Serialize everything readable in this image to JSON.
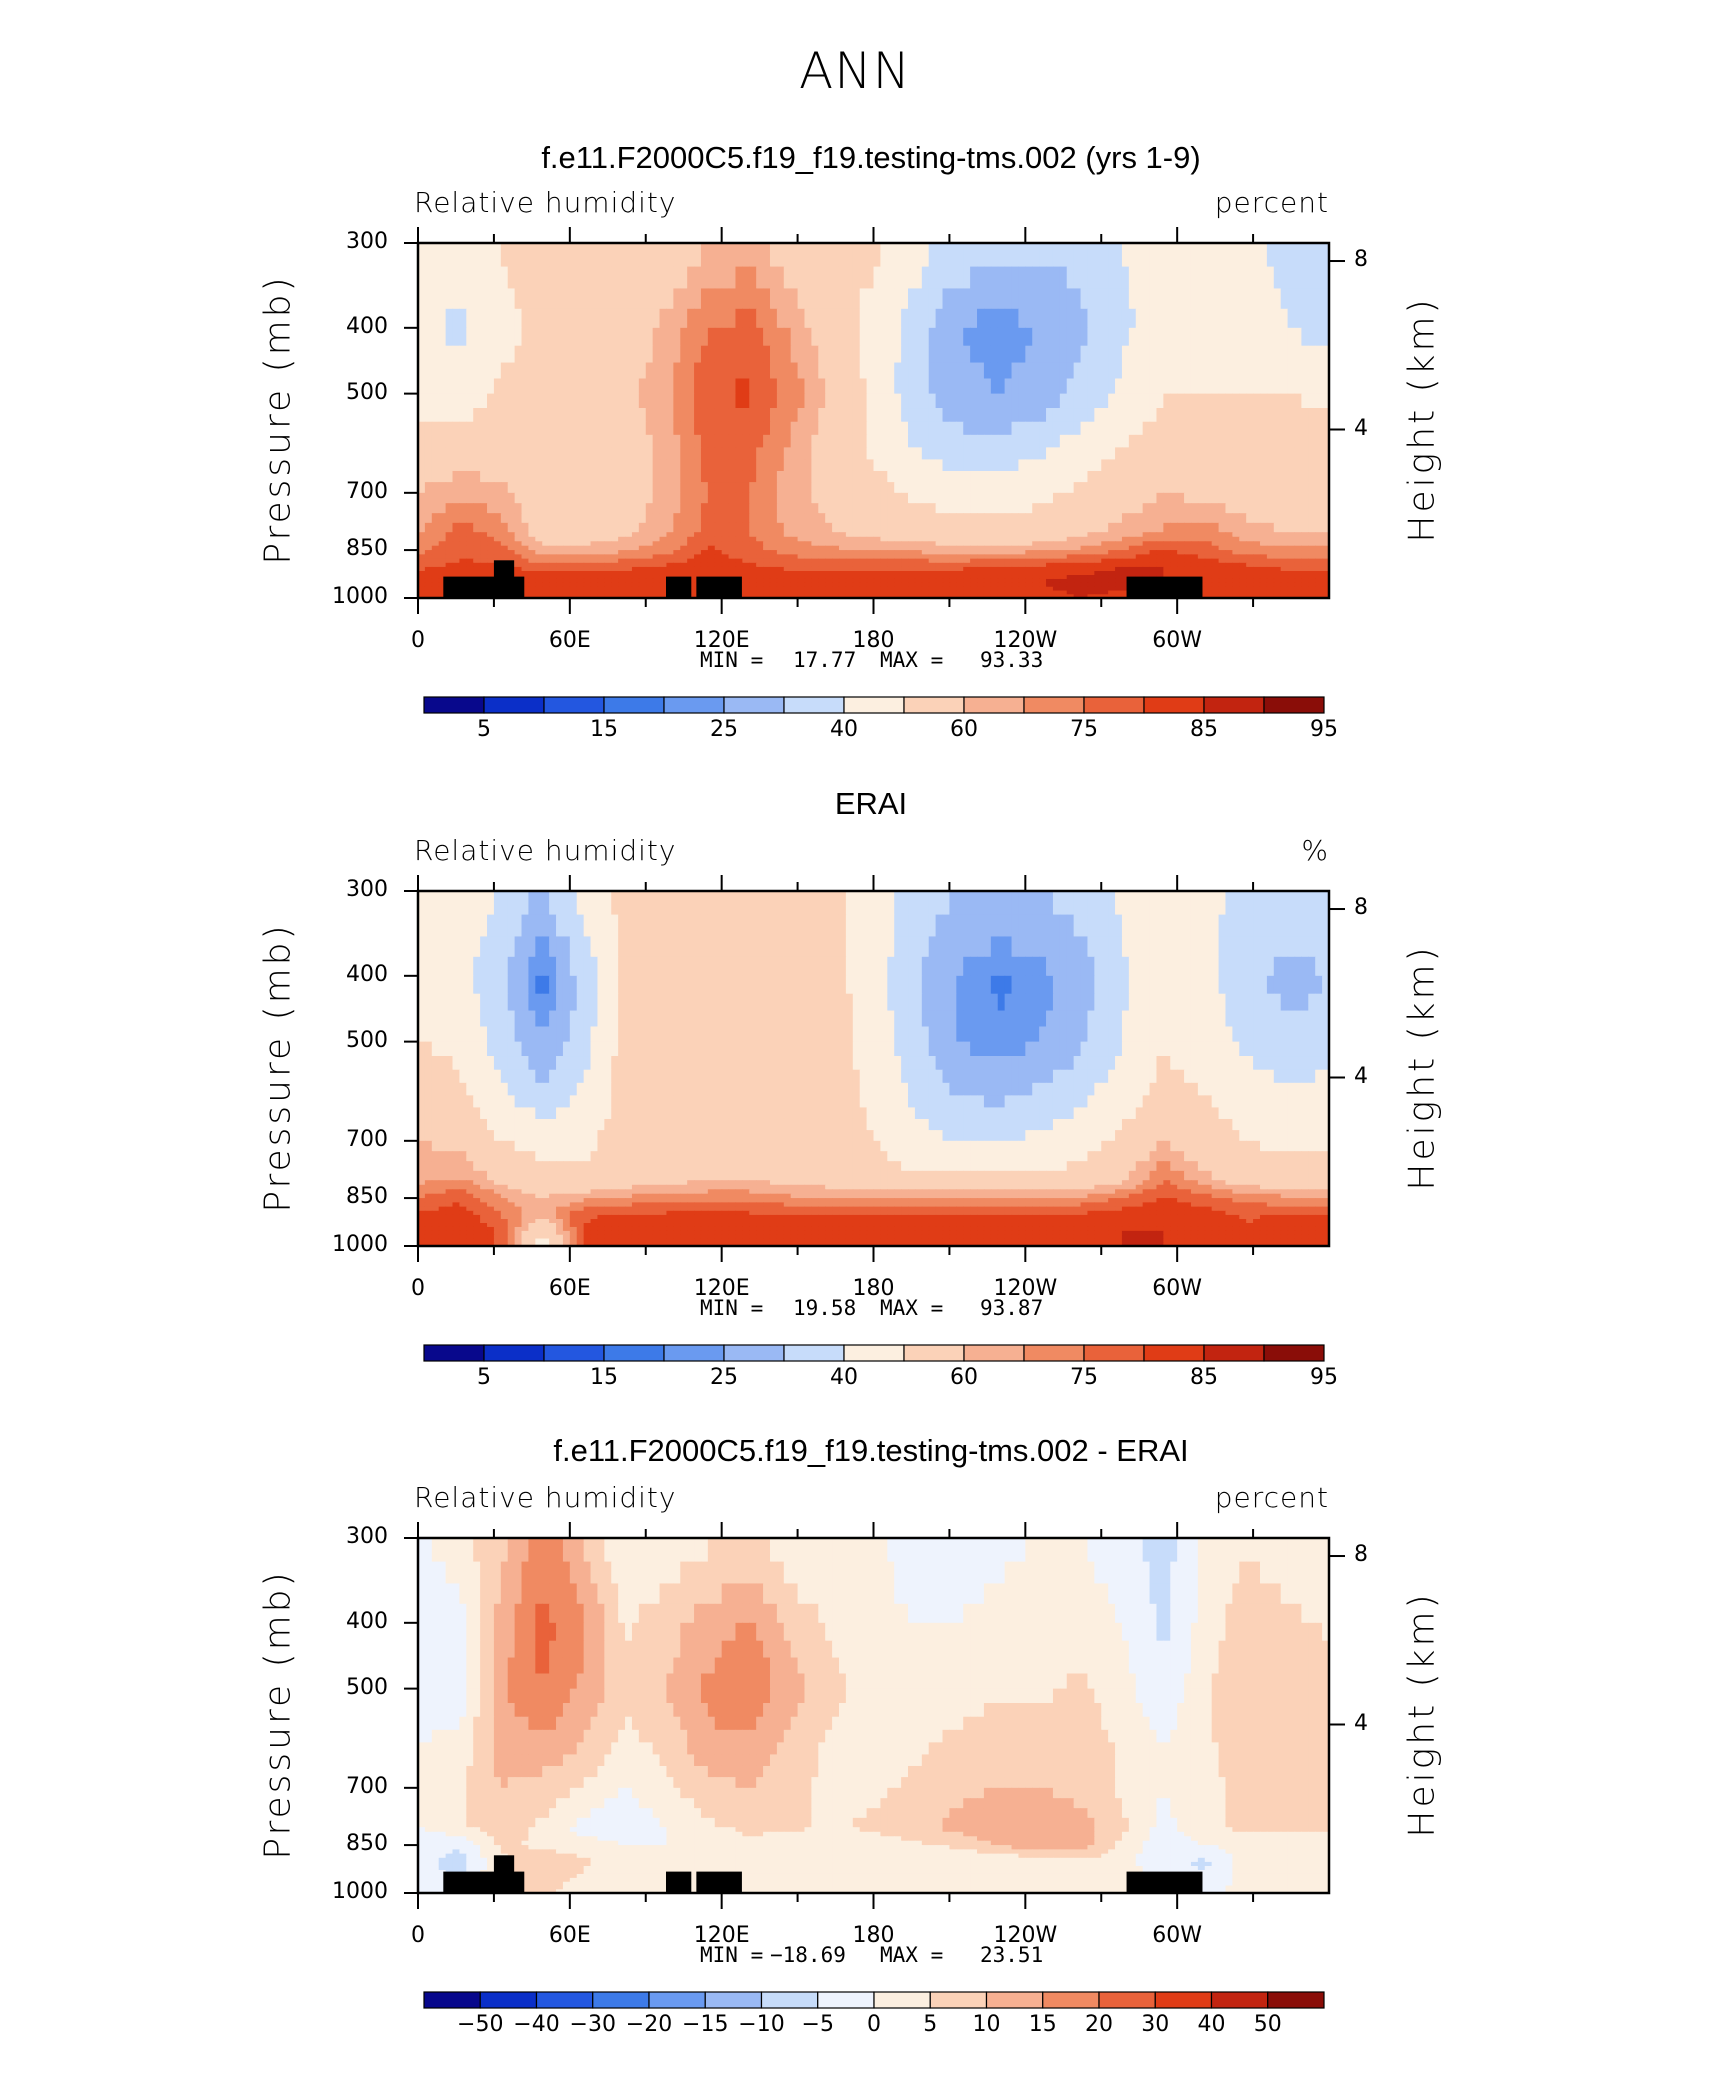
{
  "main_title": "ANN",
  "colors": {
    "rh_levels": [
      "#08088c",
      "#0b2fc8",
      "#2357e0",
      "#3d7ae8",
      "#6a9af0",
      "#9ab9f4",
      "#c7dcfa",
      "#fcefe0",
      "#fbd2b8",
      "#f6b092",
      "#f08a62",
      "#e9623a",
      "#e03c16",
      "#c22410",
      "#8a0d08"
    ],
    "diff_levels": [
      "#08088c",
      "#0b2fc8",
      "#2357e0",
      "#3d7ae8",
      "#6a9af0",
      "#9ab9f4",
      "#c7dcfa",
      "#eef3fd",
      "#fcefe0",
      "#fbd2b8",
      "#f6b092",
      "#f08a62",
      "#e9623a",
      "#e03c16",
      "#c22410",
      "#8a0d08"
    ],
    "topography": "#000000"
  },
  "chart_data": [
    {
      "type": "heatmap",
      "id": "model",
      "title": "f.e11.F2000C5.f19_f19.testing-tms.002 (yrs 1-9)",
      "variable_label": "Relative humidity",
      "units_label": "percent",
      "ylabel": "Pressure (mb)",
      "y2label": "Height (km)",
      "y_ticks": [
        "300",
        "400",
        "500",
        "700",
        "850",
        "1000"
      ],
      "y2_ticks": [
        "8",
        "4"
      ],
      "x_ticks": [
        "0",
        "60E",
        "120E",
        "180",
        "120W",
        "60W"
      ],
      "min_label": "MIN =",
      "min_value": "17.77",
      "max_label": "MAX =",
      "max_value": "93.33",
      "colorbar_labels": [
        "5",
        "15",
        "25",
        "40",
        "60",
        "75",
        "85",
        "95"
      ],
      "field": [
        [
          52,
          56,
          60,
          64,
          64,
          60,
          62,
          70,
          72,
          66,
          62,
          62,
          54,
          48,
          44,
          42,
          44,
          50,
          56,
          54,
          52,
          48,
          50
        ],
        [
          52,
          48,
          58,
          62,
          66,
          64,
          72,
          80,
          82,
          74,
          66,
          56,
          46,
          30,
          26,
          30,
          38,
          48,
          54,
          52,
          54,
          50,
          46
        ],
        [
          56,
          54,
          62,
          60,
          64,
          68,
          74,
          84,
          86,
          78,
          68,
          58,
          44,
          34,
          30,
          34,
          44,
          52,
          60,
          60,
          60,
          60,
          58
        ],
        [
          64,
          64,
          66,
          60,
          62,
          66,
          72,
          82,
          82,
          74,
          66,
          58,
          50,
          44,
          44,
          48,
          54,
          60,
          64,
          64,
          64,
          64,
          64
        ],
        [
          70,
          74,
          72,
          64,
          64,
          66,
          72,
          80,
          80,
          72,
          68,
          64,
          58,
          56,
          56,
          58,
          62,
          66,
          70,
          68,
          66,
          66,
          66
        ],
        [
          74,
          82,
          78,
          66,
          66,
          68,
          74,
          82,
          80,
          74,
          70,
          68,
          66,
          64,
          64,
          64,
          68,
          72,
          76,
          78,
          72,
          70,
          70
        ],
        [
          78,
          84,
          82,
          72,
          72,
          74,
          78,
          86,
          82,
          78,
          76,
          74,
          74,
          72,
          72,
          74,
          76,
          80,
          86,
          82,
          78,
          76,
          76
        ],
        [
          84,
          86,
          86,
          82,
          82,
          84,
          86,
          88,
          86,
          84,
          84,
          84,
          84,
          84,
          86,
          86,
          88,
          90,
          90,
          88,
          86,
          84,
          84
        ],
        [
          88,
          90,
          90,
          90,
          90,
          90,
          90,
          90,
          90,
          90,
          90,
          90,
          90,
          90,
          90,
          90,
          92,
          92,
          90,
          88,
          88,
          90,
          90
        ],
        [
          86,
          88,
          88,
          88,
          88,
          88,
          88,
          88,
          88,
          88,
          88,
          88,
          88,
          88,
          88,
          88,
          90,
          88,
          88,
          86,
          86,
          88,
          88
        ]
      ],
      "topography": [
        {
          "lon_start": 10,
          "lon_end": 42,
          "top_mb": 930
        },
        {
          "lon_start": 30,
          "lon_end": 38,
          "top_mb": 880
        },
        {
          "lon_start": 98,
          "lon_end": 108,
          "top_mb": 930
        },
        {
          "lon_start": 110,
          "lon_end": 128,
          "top_mb": 930
        },
        {
          "lon_start": 280,
          "lon_end": 310,
          "top_mb": 930
        }
      ]
    },
    {
      "type": "heatmap",
      "id": "obs",
      "title": "ERAI",
      "variable_label": "Relative humidity",
      "units_label": "%",
      "ylabel": "Pressure (mb)",
      "y2label": "Height (km)",
      "y_ticks": [
        "300",
        "400",
        "500",
        "700",
        "850",
        "1000"
      ],
      "y2_ticks": [
        "8",
        "4"
      ],
      "x_ticks": [
        "0",
        "60E",
        "120E",
        "180",
        "120W",
        "60W"
      ],
      "min_label": "MIN =",
      "min_value": "19.58",
      "max_label": "MAX =",
      "max_value": "93.87",
      "colorbar_labels": [
        "5",
        "15",
        "25",
        "40",
        "60",
        "75",
        "85",
        "95"
      ],
      "field": [
        [
          56,
          54,
          50,
          38,
          56,
          62,
          62,
          66,
          64,
          64,
          62,
          56,
          46,
          40,
          38,
          40,
          44,
          52,
          58,
          54,
          46,
          46,
          50
        ],
        [
          58,
          52,
          44,
          22,
          44,
          62,
          64,
          66,
          62,
          66,
          64,
          54,
          42,
          30,
          24,
          26,
          36,
          48,
          58,
          52,
          44,
          36,
          40
        ],
        [
          60,
          58,
          46,
          30,
          46,
          64,
          66,
          66,
          64,
          66,
          64,
          56,
          44,
          30,
          26,
          30,
          38,
          50,
          60,
          56,
          48,
          42,
          46
        ],
        [
          64,
          62,
          52,
          44,
          52,
          64,
          66,
          66,
          66,
          66,
          64,
          58,
          48,
          40,
          38,
          42,
          48,
          56,
          62,
          60,
          56,
          52,
          54
        ],
        [
          70,
          68,
          60,
          56,
          58,
          64,
          66,
          68,
          68,
          66,
          64,
          60,
          54,
          50,
          50,
          52,
          56,
          62,
          70,
          64,
          60,
          58,
          58
        ],
        [
          74,
          76,
          68,
          64,
          62,
          66,
          68,
          70,
          70,
          68,
          66,
          64,
          62,
          62,
          62,
          62,
          64,
          68,
          80,
          72,
          66,
          64,
          64
        ],
        [
          80,
          84,
          76,
          70,
          74,
          76,
          78,
          78,
          78,
          76,
          76,
          76,
          76,
          76,
          76,
          76,
          76,
          80,
          86,
          82,
          78,
          76,
          76
        ],
        [
          86,
          88,
          80,
          72,
          84,
          86,
          86,
          86,
          86,
          86,
          86,
          86,
          86,
          86,
          86,
          86,
          86,
          88,
          88,
          88,
          84,
          86,
          86
        ],
        [
          88,
          90,
          84,
          60,
          86,
          88,
          88,
          88,
          88,
          88,
          88,
          88,
          88,
          88,
          88,
          88,
          88,
          90,
          90,
          88,
          86,
          88,
          88
        ],
        [
          88,
          90,
          84,
          56,
          86,
          88,
          88,
          88,
          88,
          88,
          88,
          88,
          88,
          88,
          88,
          88,
          88,
          90,
          90,
          88,
          86,
          88,
          88
        ]
      ],
      "topography": []
    },
    {
      "type": "heatmap",
      "id": "diff",
      "title": "f.e11.F2000C5.f19_f19.testing-tms.002 - ERAI",
      "variable_label": "Relative humidity",
      "units_label": "percent",
      "ylabel": "Pressure (mb)",
      "y2label": "Height (km)",
      "y_ticks": [
        "300",
        "400",
        "500",
        "700",
        "850",
        "1000"
      ],
      "y2_ticks": [
        "8",
        "4"
      ],
      "x_ticks": [
        "0",
        "60E",
        "120E",
        "180",
        "120W",
        "60W"
      ],
      "min_label": "MIN =",
      "min_value": "−18.69",
      "max_label": "MAX =",
      "max_value": "23.51",
      "colorbar_labels": [
        "−50",
        "−40",
        "−30",
        "−20",
        "−15",
        "−10",
        "−5",
        "0",
        "5",
        "10",
        "15",
        "20",
        "30",
        "40",
        "50"
      ],
      "field": [
        [
          -2,
          4,
          8,
          18,
          10,
          0,
          2,
          4,
          6,
          2,
          0,
          2,
          -4,
          -4,
          -2,
          0,
          0,
          -2,
          -8,
          2,
          4,
          2,
          0
        ],
        [
          -4,
          -2,
          12,
          22,
          16,
          4,
          8,
          12,
          16,
          8,
          4,
          2,
          0,
          0,
          2,
          4,
          2,
          0,
          -6,
          2,
          8,
          6,
          4
        ],
        [
          -4,
          -4,
          14,
          20,
          14,
          6,
          10,
          16,
          20,
          12,
          6,
          4,
          2,
          2,
          4,
          4,
          6,
          2,
          -4,
          4,
          10,
          10,
          8
        ],
        [
          0,
          2,
          12,
          14,
          10,
          4,
          6,
          14,
          14,
          8,
          4,
          2,
          4,
          6,
          8,
          8,
          8,
          4,
          0,
          4,
          8,
          10,
          8
        ],
        [
          2,
          4,
          10,
          8,
          4,
          0,
          4,
          8,
          10,
          6,
          4,
          4,
          6,
          8,
          10,
          10,
          8,
          4,
          0,
          4,
          6,
          8,
          8
        ],
        [
          0,
          4,
          8,
          4,
          -2,
          -4,
          0,
          4,
          6,
          6,
          4,
          6,
          8,
          12,
          14,
          14,
          12,
          6,
          -2,
          4,
          6,
          6,
          6
        ],
        [
          -4,
          -4,
          6,
          4,
          2,
          0,
          0,
          2,
          4,
          2,
          2,
          2,
          4,
          6,
          10,
          14,
          12,
          4,
          -4,
          0,
          2,
          2,
          2
        ],
        [
          -2,
          -8,
          4,
          8,
          6,
          2,
          0,
          2,
          2,
          2,
          0,
          0,
          0,
          0,
          0,
          2,
          4,
          2,
          -4,
          -6,
          2,
          0,
          0
        ],
        [
          -2,
          -6,
          6,
          8,
          4,
          2,
          2,
          2,
          2,
          2,
          2,
          2,
          2,
          2,
          2,
          2,
          4,
          2,
          0,
          -4,
          2,
          2,
          2
        ],
        [
          -2,
          -4,
          4,
          6,
          2,
          2,
          2,
          2,
          2,
          2,
          2,
          2,
          2,
          2,
          2,
          2,
          2,
          0,
          0,
          -2,
          2,
          0,
          0
        ]
      ],
      "topography": [
        {
          "lon_start": 10,
          "lon_end": 42,
          "top_mb": 930
        },
        {
          "lon_start": 30,
          "lon_end": 38,
          "top_mb": 880
        },
        {
          "lon_start": 98,
          "lon_end": 108,
          "top_mb": 930
        },
        {
          "lon_start": 110,
          "lon_end": 128,
          "top_mb": 930
        },
        {
          "lon_start": 280,
          "lon_end": 310,
          "top_mb": 930
        }
      ]
    }
  ],
  "axes": {
    "lon_range": [
      0,
      360
    ],
    "pressure_levels": [
      300,
      400,
      500,
      600,
      700,
      800,
      850,
      900,
      950,
      1000
    ],
    "pressure_range": [
      300,
      1000
    ],
    "x_tick_lon": [
      0,
      60,
      120,
      180,
      240,
      300
    ],
    "y_tick_mb": [
      300,
      400,
      500,
      700,
      850,
      1000
    ],
    "y2_tick_km": [
      8,
      4
    ],
    "rh_thresholds": [
      0,
      10,
      15,
      20,
      25,
      30,
      40,
      50,
      60,
      70,
      75,
      80,
      85,
      90,
      95
    ],
    "diff_thresholds": [
      -50,
      -40,
      -30,
      -20,
      -15,
      -10,
      -5,
      0,
      5,
      10,
      15,
      20,
      30,
      40,
      50
    ]
  }
}
